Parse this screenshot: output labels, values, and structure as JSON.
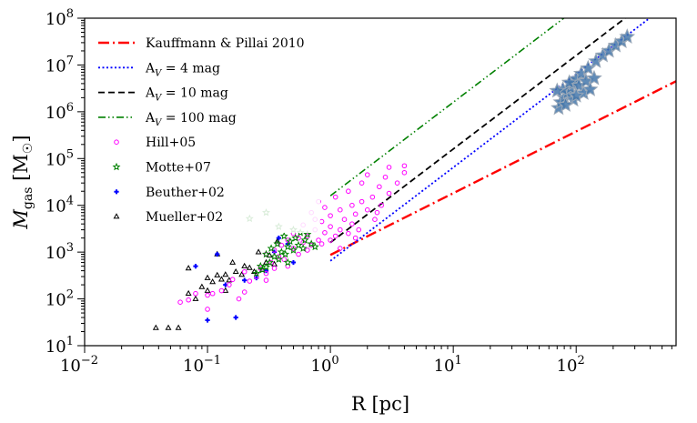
{
  "chart_data": {
    "type": "scatter",
    "xlabel": "R [pc]",
    "ylabel": "M_gas [M_sun]",
    "xscale": "log",
    "yscale": "log",
    "xlim": [
      0.01,
      650
    ],
    "ylim": [
      10,
      100000000
    ],
    "x_ticks": [
      {
        "value": 0.01,
        "base": "10",
        "exp": "−2"
      },
      {
        "value": 0.1,
        "base": "10",
        "exp": "−1"
      },
      {
        "value": 1,
        "base": "10",
        "exp": "0"
      },
      {
        "value": 10,
        "base": "10",
        "exp": "1"
      },
      {
        "value": 100,
        "base": "10",
        "exp": "2"
      }
    ],
    "y_ticks": [
      {
        "value": 10,
        "base": "10",
        "exp": "1"
      },
      {
        "value": 100,
        "base": "10",
        "exp": "2"
      },
      {
        "value": 1000,
        "base": "10",
        "exp": "3"
      },
      {
        "value": 10000,
        "base": "10",
        "exp": "4"
      },
      {
        "value": 100000,
        "base": "10",
        "exp": "5"
      },
      {
        "value": 1000000,
        "base": "10",
        "exp": "6"
      },
      {
        "value": 10000000,
        "base": "10",
        "exp": "7"
      },
      {
        "value": 100000000,
        "base": "10",
        "exp": "8"
      }
    ],
    "legend_position": "top-left",
    "legend": [
      {
        "label": "Kauffmann & Pillai 2010",
        "kind": "line",
        "color": "#ff0000",
        "dash": "dashdot"
      },
      {
        "label": "A_V = 4 mag",
        "kind": "line",
        "color": "#0000ff",
        "dash": "dotted"
      },
      {
        "label": "A_V = 10 mag",
        "kind": "line",
        "color": "#000000",
        "dash": "dashed"
      },
      {
        "label": "A_V = 100 mag",
        "kind": "line",
        "color": "#008000",
        "dash": "dashdotdot"
      },
      {
        "label": "Hill+05",
        "kind": "marker",
        "color": "#ff00ff",
        "marker": "circle-open"
      },
      {
        "label": "Motte+07",
        "kind": "marker",
        "color": "#008000",
        "marker": "star-open"
      },
      {
        "label": "Beuther+02",
        "kind": "marker",
        "color": "#0000ff",
        "marker": "plus"
      },
      {
        "label": "Mueller+02",
        "kind": "marker",
        "color": "#000000",
        "marker": "triangle-open"
      }
    ],
    "lines": [
      {
        "name": "Kauffmann & Pillai 2010",
        "color": "#ff0000",
        "dash": "dashdot",
        "x": [
          1,
          650
        ],
        "y": [
          870,
          4500000
        ]
      },
      {
        "name": "A_V = 4 mag",
        "color": "#0000ff",
        "dash": "dotted",
        "x": [
          1,
          500
        ],
        "y": [
          650,
          160000000
        ]
      },
      {
        "name": "A_V = 10 mag",
        "color": "#000000",
        "dash": "dashed",
        "x": [
          1,
          260
        ],
        "y": [
          1600,
          108000000
        ]
      },
      {
        "name": "A_V = 100 mag",
        "color": "#008000",
        "dash": "dashdotdot",
        "x": [
          1,
          80
        ],
        "y": [
          16000,
          102000000
        ]
      }
    ],
    "series": [
      {
        "name": "Hill+05",
        "color": "#ff00ff",
        "marker": "circle-open",
        "points": [
          [
            0.06,
            85
          ],
          [
            0.07,
            95
          ],
          [
            0.08,
            130
          ],
          [
            0.1,
            120
          ],
          [
            0.1,
            60
          ],
          [
            0.11,
            130
          ],
          [
            0.13,
            150
          ],
          [
            0.15,
            200
          ],
          [
            0.16,
            260
          ],
          [
            0.18,
            100
          ],
          [
            0.2,
            140
          ],
          [
            0.2,
            380
          ],
          [
            0.22,
            240
          ],
          [
            0.25,
            300
          ],
          [
            0.27,
            450
          ],
          [
            0.3,
            350
          ],
          [
            0.3,
            900
          ],
          [
            0.33,
            600
          ],
          [
            0.35,
            1100
          ],
          [
            0.38,
            800
          ],
          [
            0.4,
            1400
          ],
          [
            0.42,
            700
          ],
          [
            0.45,
            1800
          ],
          [
            0.5,
            1200
          ],
          [
            0.5,
            2500
          ],
          [
            0.55,
            900
          ],
          [
            0.6,
            1600
          ],
          [
            0.6,
            3800
          ],
          [
            0.65,
            2200
          ],
          [
            0.7,
            1400
          ],
          [
            0.7,
            7000
          ],
          [
            0.75,
            3000
          ],
          [
            0.8,
            1800
          ],
          [
            0.8,
            12000
          ],
          [
            0.85,
            4500
          ],
          [
            0.9,
            2600
          ],
          [
            0.9,
            9000
          ],
          [
            1.0,
            1800
          ],
          [
            1.0,
            3500
          ],
          [
            1.0,
            6000
          ],
          [
            1.1,
            2200
          ],
          [
            1.1,
            15000
          ],
          [
            1.2,
            3000
          ],
          [
            1.2,
            8000
          ],
          [
            1.3,
            5000
          ],
          [
            1.4,
            2500
          ],
          [
            1.4,
            20000
          ],
          [
            1.5,
            4000
          ],
          [
            1.5,
            10000
          ],
          [
            1.6,
            6500
          ],
          [
            1.7,
            3000
          ],
          [
            1.8,
            12000
          ],
          [
            1.8,
            30000
          ],
          [
            2.0,
            8000
          ],
          [
            2.0,
            45000
          ],
          [
            2.2,
            15000
          ],
          [
            2.3,
            5000
          ],
          [
            2.5,
            25000
          ],
          [
            2.6,
            10000
          ],
          [
            2.8,
            40000
          ],
          [
            3.0,
            18000
          ],
          [
            3.0,
            65000
          ],
          [
            3.5,
            30000
          ],
          [
            4.0,
            50000
          ],
          [
            4.0,
            70000
          ],
          [
            0.45,
            500
          ],
          [
            0.55,
            2000
          ],
          [
            0.65,
            1100
          ],
          [
            0.75,
            5000
          ],
          [
            0.85,
            1500
          ],
          [
            1.2,
            1200
          ],
          [
            1.6,
            2000
          ],
          [
            2.4,
            7000
          ],
          [
            0.3,
            250
          ],
          [
            0.35,
            450
          ]
        ]
      },
      {
        "name": "Motte+07",
        "color": "#008000",
        "marker": "star-open",
        "points": [
          [
            0.22,
            5200
          ],
          [
            0.3,
            7000
          ],
          [
            0.25,
            350
          ],
          [
            0.27,
            500
          ],
          [
            0.28,
            420
          ],
          [
            0.3,
            480
          ],
          [
            0.3,
            900
          ],
          [
            0.32,
            600
          ],
          [
            0.33,
            1200
          ],
          [
            0.35,
            800
          ],
          [
            0.37,
            1500
          ],
          [
            0.38,
            700
          ],
          [
            0.4,
            1000
          ],
          [
            0.42,
            2200
          ],
          [
            0.43,
            900
          ],
          [
            0.45,
            1300
          ],
          [
            0.47,
            1700
          ],
          [
            0.5,
            1100
          ],
          [
            0.52,
            2000
          ],
          [
            0.55,
            1400
          ],
          [
            0.57,
            2600
          ],
          [
            0.6,
            1200
          ],
          [
            0.62,
            1800
          ],
          [
            0.65,
            2400
          ],
          [
            0.7,
            1500
          ],
          [
            0.75,
            1300
          ],
          [
            0.38,
            3500
          ],
          [
            0.45,
            600
          ],
          [
            0.5,
            3000
          ]
        ]
      },
      {
        "name": "Beuther+02",
        "color": "#0000ff",
        "marker": "plus",
        "points": [
          [
            0.08,
            500
          ],
          [
            0.1,
            35
          ],
          [
            0.12,
            900
          ],
          [
            0.14,
            200
          ],
          [
            0.17,
            40
          ],
          [
            0.2,
            250
          ],
          [
            0.25,
            280
          ],
          [
            0.3,
            400
          ],
          [
            0.35,
            1000
          ],
          [
            0.38,
            2000
          ],
          [
            0.45,
            1500
          ],
          [
            0.5,
            600
          ]
        ]
      },
      {
        "name": "Mueller+02",
        "color": "#000000",
        "marker": "triangle-open",
        "points": [
          [
            0.038,
            24
          ],
          [
            0.048,
            24
          ],
          [
            0.058,
            24
          ],
          [
            0.07,
            130
          ],
          [
            0.07,
            450
          ],
          [
            0.08,
            100
          ],
          [
            0.09,
            180
          ],
          [
            0.1,
            150
          ],
          [
            0.1,
            280
          ],
          [
            0.11,
            230
          ],
          [
            0.12,
            320
          ],
          [
            0.13,
            260
          ],
          [
            0.14,
            330
          ],
          [
            0.15,
            250
          ],
          [
            0.16,
            600
          ],
          [
            0.17,
            380
          ],
          [
            0.19,
            330
          ],
          [
            0.2,
            500
          ],
          [
            0.22,
            460
          ],
          [
            0.24,
            380
          ],
          [
            0.26,
            1000
          ],
          [
            0.28,
            420
          ],
          [
            0.3,
            600
          ],
          [
            0.32,
            850
          ],
          [
            0.35,
            550
          ],
          [
            0.37,
            1700
          ],
          [
            0.12,
            900
          ],
          [
            0.14,
            150
          ]
        ]
      },
      {
        "name": "",
        "color": "#4477aa",
        "marker": "star-filled",
        "group": "large-clouds",
        "points": [
          [
            72,
            1200000
          ],
          [
            75,
            1600000
          ],
          [
            80,
            2000000
          ],
          [
            85,
            2500000
          ],
          [
            90,
            3200000
          ],
          [
            95,
            4000000
          ],
          [
            100,
            5000000
          ],
          [
            110,
            6500000
          ],
          [
            125,
            8500000
          ],
          [
            145,
            12000000
          ],
          [
            165,
            16000000
          ],
          [
            185,
            20000000
          ],
          [
            210,
            26000000
          ],
          [
            235,
            32000000
          ],
          [
            260,
            40000000
          ],
          [
            78,
            3000000
          ],
          [
            88,
            4200000
          ],
          [
            105,
            3600000
          ],
          [
            115,
            2500000
          ],
          [
            95,
            1800000
          ],
          [
            82,
            1400000
          ],
          [
            120,
            4500000
          ],
          [
            140,
            5200000
          ],
          [
            70,
            2800000
          ],
          [
            100,
            2200000
          ],
          [
            130,
            3000000
          ]
        ]
      }
    ]
  }
}
